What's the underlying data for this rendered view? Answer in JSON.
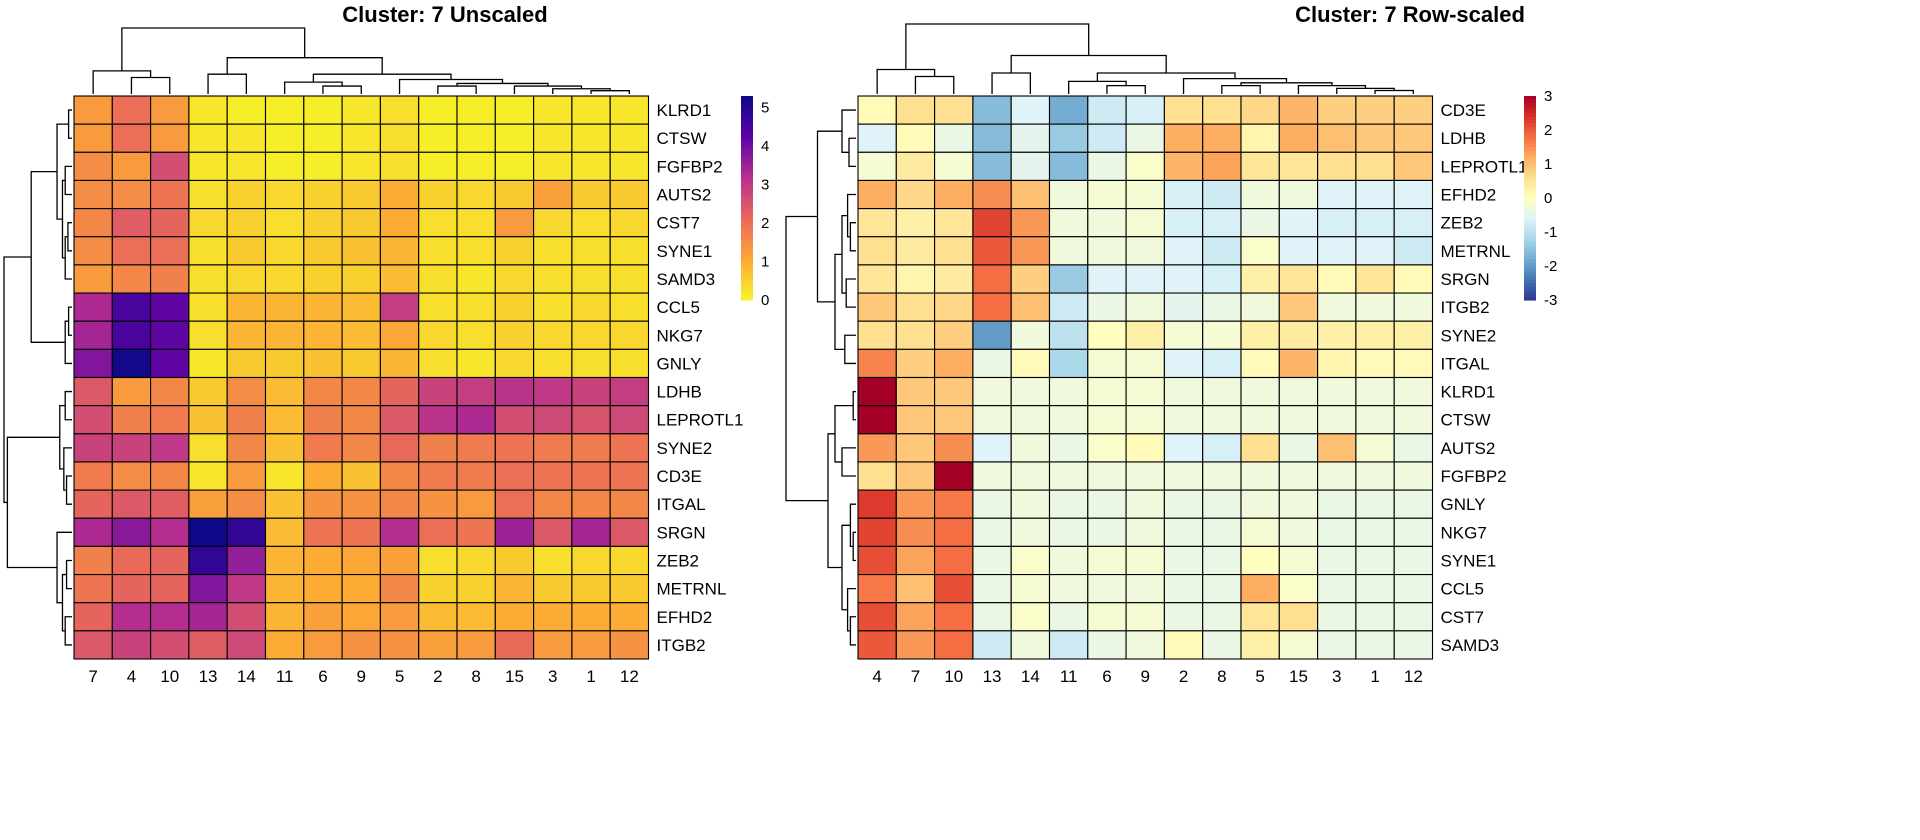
{
  "chart_data": [
    {
      "type": "heatmap",
      "title": "Cluster: 7 Unscaled",
      "columns": [
        "7",
        "4",
        "10",
        "13",
        "14",
        "11",
        "6",
        "9",
        "5",
        "2",
        "8",
        "15",
        "3",
        "1",
        "12"
      ],
      "rows": [
        "KLRD1",
        "CTSW",
        "FGFBP2",
        "AUTS2",
        "CST7",
        "SYNE1",
        "SAMD3",
        "CCL5",
        "NKG7",
        "GNLY",
        "LDHB",
        "LEPROTL1",
        "SYNE2",
        "CD3E",
        "ITGAL",
        "SRGN",
        "ZEB2",
        "METRNL",
        "EFHD2",
        "ITGB2"
      ],
      "values": [
        [
          1.3,
          2.0,
          1.3,
          0.2,
          0.1,
          0.1,
          0.1,
          0.2,
          0.3,
          0.1,
          0.1,
          0.1,
          0.2,
          0.2,
          0.2
        ],
        [
          1.3,
          2.0,
          1.3,
          0.2,
          0.2,
          0.1,
          0.1,
          0.2,
          0.3,
          0.1,
          0.1,
          0.1,
          0.2,
          0.2,
          0.2
        ],
        [
          1.5,
          1.3,
          2.6,
          0.2,
          0.2,
          0.1,
          0.1,
          0.2,
          0.3,
          0.1,
          0.1,
          0.1,
          0.2,
          0.2,
          0.2
        ],
        [
          1.5,
          1.5,
          1.9,
          0.3,
          0.5,
          0.4,
          0.5,
          0.6,
          1.0,
          0.5,
          0.4,
          0.6,
          1.2,
          0.6,
          0.6
        ],
        [
          1.6,
          2.3,
          2.2,
          0.4,
          0.5,
          0.3,
          0.5,
          0.6,
          1.0,
          0.3,
          0.3,
          1.3,
          0.4,
          0.3,
          0.4
        ],
        [
          1.5,
          2.0,
          2.0,
          0.3,
          0.6,
          0.4,
          0.6,
          0.7,
          0.9,
          0.3,
          0.3,
          0.5,
          0.3,
          0.3,
          0.3
        ],
        [
          1.3,
          1.6,
          1.7,
          0.3,
          0.4,
          0.4,
          0.5,
          0.5,
          0.8,
          0.3,
          0.2,
          0.4,
          0.3,
          0.3,
          0.3
        ],
        [
          3.3,
          4.5,
          4.2,
          0.3,
          0.9,
          0.9,
          0.9,
          0.8,
          2.9,
          0.3,
          0.3,
          0.5,
          0.3,
          0.4,
          0.3
        ],
        [
          3.4,
          4.5,
          4.2,
          0.3,
          0.9,
          0.9,
          0.9,
          0.8,
          1.1,
          0.4,
          0.3,
          0.5,
          0.4,
          0.4,
          0.4
        ],
        [
          3.8,
          5.2,
          4.2,
          0.2,
          0.6,
          0.6,
          0.7,
          0.6,
          0.9,
          0.3,
          0.2,
          0.4,
          0.3,
          0.3,
          0.3
        ],
        [
          2.4,
          1.3,
          1.6,
          0.6,
          1.5,
          0.8,
          1.6,
          1.6,
          2.2,
          2.8,
          2.9,
          3.1,
          3.0,
          2.8,
          2.9
        ],
        [
          2.6,
          1.7,
          1.8,
          0.7,
          1.7,
          0.8,
          1.7,
          1.6,
          2.4,
          3.1,
          3.3,
          2.6,
          2.7,
          2.5,
          2.7
        ],
        [
          2.8,
          2.8,
          3.0,
          0.3,
          1.6,
          0.7,
          1.8,
          1.6,
          2.1,
          1.7,
          1.8,
          1.9,
          1.8,
          1.8,
          1.9
        ],
        [
          1.8,
          1.5,
          1.6,
          0.2,
          1.3,
          0.2,
          1.0,
          0.7,
          1.6,
          1.8,
          1.8,
          2.0,
          1.9,
          1.9,
          1.9
        ],
        [
          2.2,
          2.4,
          2.3,
          1.2,
          1.5,
          0.7,
          1.4,
          1.4,
          1.6,
          1.4,
          1.3,
          2.0,
          1.6,
          1.6,
          1.6
        ],
        [
          3.3,
          3.7,
          3.2,
          5.3,
          4.8,
          0.8,
          1.9,
          1.9,
          3.2,
          2.0,
          1.9,
          3.5,
          2.4,
          3.4,
          2.4
        ],
        [
          1.7,
          2.1,
          2.2,
          4.8,
          3.6,
          0.9,
          1.0,
          1.1,
          1.2,
          0.3,
          0.4,
          0.6,
          0.3,
          0.4,
          0.4
        ],
        [
          1.9,
          2.2,
          2.2,
          3.8,
          3.0,
          0.9,
          1.0,
          1.0,
          1.6,
          0.5,
          0.5,
          0.9,
          0.6,
          0.6,
          0.6
        ],
        [
          2.2,
          3.2,
          3.2,
          3.4,
          2.6,
          0.9,
          1.2,
          1.1,
          1.3,
          0.8,
          0.8,
          1.0,
          1.0,
          1.0,
          1.0
        ],
        [
          2.4,
          2.8,
          2.6,
          2.3,
          2.7,
          1.0,
          1.3,
          1.4,
          1.4,
          1.2,
          1.3,
          2.1,
          1.3,
          1.3,
          1.4
        ]
      ],
      "colorbar": {
        "ticks": [
          "0",
          "1",
          "2",
          "3",
          "4",
          "5"
        ],
        "range": [
          0,
          5.3
        ],
        "colors": [
          "#f6f529",
          "#fca836",
          "#e9685a",
          "#b62f8f",
          "#5c03a5",
          "#0d0887"
        ]
      },
      "row_dendrogram": true,
      "col_dendrogram": true,
      "legend": "right"
    },
    {
      "type": "heatmap",
      "title": "Cluster: 7 Row-scaled",
      "columns": [
        "4",
        "7",
        "10",
        "13",
        "14",
        "11",
        "6",
        "9",
        "2",
        "8",
        "5",
        "15",
        "3",
        "1",
        "12"
      ],
      "rows": [
        "CD3E",
        "LDHB",
        "LEPROTL1",
        "EFHD2",
        "ZEB2",
        "METRNL",
        "SRGN",
        "ITGB2",
        "SYNE2",
        "ITGAL",
        "KLRD1",
        "CTSW",
        "AUTS2",
        "FGFBP2",
        "GNLY",
        "NKG7",
        "SYNE1",
        "CCL5",
        "CST7",
        "SAMD3"
      ],
      "values": [
        [
          0.1,
          0.6,
          0.6,
          -1.6,
          -0.6,
          -1.8,
          -0.8,
          -0.7,
          0.6,
          0.6,
          0.7,
          1.1,
          0.8,
          0.8,
          0.8
        ],
        [
          -0.6,
          0.1,
          -0.4,
          -1.6,
          -0.5,
          -1.4,
          -0.8,
          -0.4,
          1.2,
          1.2,
          0.2,
          1.2,
          1.0,
          0.9,
          0.9
        ],
        [
          -0.2,
          0.4,
          -0.2,
          -1.6,
          -0.5,
          -1.6,
          -0.4,
          -0.1,
          1.1,
          1.3,
          0.5,
          0.5,
          0.6,
          0.6,
          0.9
        ],
        [
          1.2,
          0.7,
          1.2,
          1.5,
          1.0,
          -0.3,
          -0.2,
          -0.2,
          -0.7,
          -0.8,
          -0.3,
          -0.3,
          -0.6,
          -0.6,
          -0.6
        ],
        [
          0.5,
          0.3,
          0.5,
          2.2,
          1.4,
          -0.3,
          -0.3,
          -0.2,
          -0.7,
          -0.7,
          -0.4,
          -0.6,
          -0.7,
          -0.7,
          -0.7
        ],
        [
          0.6,
          0.4,
          0.6,
          2.0,
          1.4,
          -0.3,
          -0.3,
          -0.3,
          -0.6,
          -0.8,
          -0.1,
          -0.6,
          -0.6,
          -0.6,
          -0.8
        ],
        [
          0.5,
          0.2,
          0.4,
          1.8,
          0.8,
          -1.4,
          -0.6,
          -0.6,
          -0.6,
          -0.7,
          0.3,
          0.5,
          0.1,
          0.5,
          0.1
        ],
        [
          0.9,
          0.6,
          0.7,
          1.8,
          1.0,
          -0.8,
          -0.4,
          -0.3,
          -0.5,
          -0.4,
          -0.3,
          0.9,
          -0.3,
          -0.3,
          -0.3
        ],
        [
          0.6,
          0.6,
          0.8,
          -2.0,
          -0.3,
          -1.0,
          0.0,
          0.3,
          -0.2,
          -0.2,
          0.3,
          0.4,
          0.3,
          0.3,
          0.3
        ],
        [
          1.6,
          0.8,
          1.2,
          -0.4,
          0.1,
          -1.2,
          -0.2,
          -0.2,
          -0.6,
          -0.7,
          0.1,
          1.1,
          0.2,
          0.1,
          0.1
        ],
        [
          3.2,
          0.9,
          0.9,
          -0.3,
          -0.3,
          -0.3,
          -0.2,
          -0.2,
          -0.3,
          -0.3,
          -0.3,
          -0.3,
          -0.3,
          -0.3,
          -0.3
        ],
        [
          3.2,
          0.9,
          0.9,
          -0.3,
          -0.3,
          -0.3,
          -0.2,
          -0.2,
          -0.3,
          -0.3,
          -0.3,
          -0.3,
          -0.3,
          -0.3,
          -0.3
        ],
        [
          1.4,
          0.9,
          1.5,
          -0.6,
          -0.3,
          -0.4,
          -0.1,
          0.1,
          -0.6,
          -0.7,
          0.6,
          -0.4,
          1.0,
          -0.2,
          -0.4
        ],
        [
          0.6,
          0.9,
          3.2,
          -0.3,
          -0.3,
          -0.3,
          -0.3,
          -0.3,
          -0.3,
          -0.3,
          -0.3,
          -0.3,
          -0.3,
          -0.3,
          -0.3
        ],
        [
          2.3,
          1.4,
          1.7,
          -0.4,
          -0.3,
          -0.4,
          -0.4,
          -0.3,
          -0.4,
          -0.4,
          -0.3,
          -0.3,
          -0.4,
          -0.4,
          -0.4
        ],
        [
          2.2,
          1.5,
          1.8,
          -0.4,
          -0.3,
          -0.4,
          -0.4,
          -0.3,
          -0.4,
          -0.4,
          -0.2,
          -0.3,
          -0.4,
          -0.4,
          -0.4
        ],
        [
          2.1,
          1.3,
          1.8,
          -0.4,
          -0.1,
          -0.3,
          -0.2,
          -0.2,
          -0.4,
          -0.4,
          0.0,
          -0.2,
          -0.4,
          -0.4,
          -0.4
        ],
        [
          1.7,
          1.0,
          2.1,
          -0.4,
          -0.2,
          -0.3,
          -0.3,
          -0.3,
          -0.4,
          -0.4,
          1.2,
          -0.1,
          -0.4,
          -0.4,
          -0.4
        ],
        [
          2.1,
          1.3,
          1.8,
          -0.4,
          -0.1,
          -0.4,
          -0.2,
          -0.2,
          -0.4,
          -0.4,
          0.5,
          0.6,
          -0.4,
          -0.4,
          -0.4
        ],
        [
          2.0,
          1.4,
          1.8,
          -0.8,
          -0.3,
          -0.8,
          -0.4,
          -0.3,
          0.1,
          -0.4,
          0.3,
          -0.2,
          -0.4,
          -0.4,
          -0.4
        ]
      ],
      "colorbar": {
        "ticks": [
          "3",
          "2",
          "1",
          "0",
          "-1",
          "-2",
          "-3"
        ],
        "range": [
          -3,
          3
        ],
        "colors": [
          "#313695",
          "#4575b4",
          "#74add1",
          "#abd9e9",
          "#e0f3f8",
          "#ffffbf",
          "#fee090",
          "#fdae61",
          "#f46d43",
          "#d73027",
          "#a50026"
        ]
      },
      "row_dendrogram": true,
      "col_dendrogram": true,
      "legend": "right"
    }
  ]
}
